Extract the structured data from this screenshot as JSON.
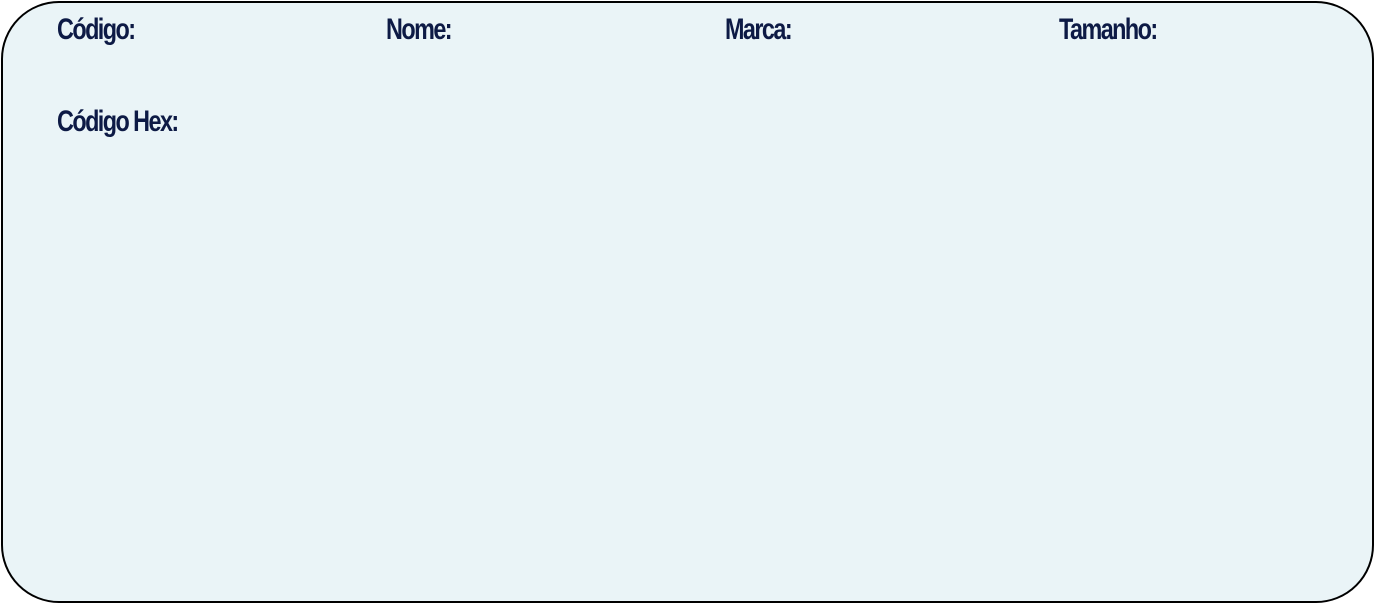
{
  "colors": {
    "card_background": "#eaf4f7",
    "card_border": "#000000",
    "label_text": "#0d1a45"
  },
  "card": {
    "fields": {
      "codigo_label": "Código:",
      "nome_label": "Nome:",
      "marca_label": "Marca:",
      "tamanho_label": "Tamanho:",
      "codigo_hex_label": "Código Hex:"
    }
  }
}
